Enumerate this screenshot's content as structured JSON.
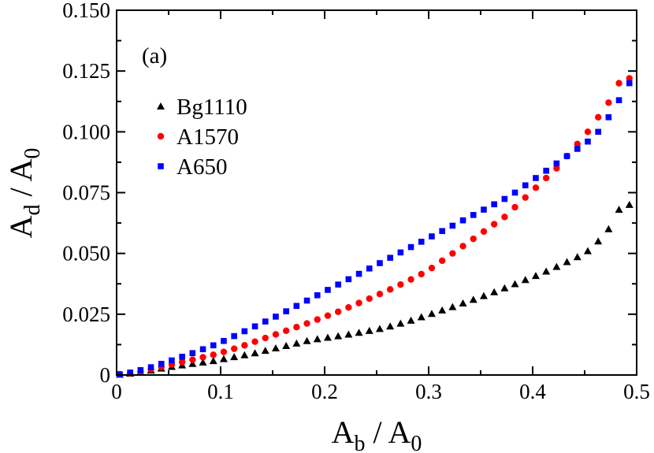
{
  "chart_data": {
    "type": "scatter",
    "panel_label": "(a)",
    "xlabel": {
      "main": "A",
      "sub1": "b",
      "sep": " / A",
      "sub2": "0"
    },
    "ylabel": {
      "main": "A",
      "sub1": "d",
      "sep": " / A",
      "sub2": "0"
    },
    "xlim": [
      0,
      0.5
    ],
    "ylim": [
      0,
      0.15
    ],
    "xticks": [
      0,
      0.1,
      0.2,
      0.3,
      0.4,
      0.5
    ],
    "xtick_labels": [
      "0",
      "0.1",
      "0.2",
      "0.3",
      "0.4",
      "0.5"
    ],
    "yticks": [
      0,
      0.025,
      0.05,
      0.075,
      0.1,
      0.125,
      0.15
    ],
    "ytick_labels": [
      "0",
      "0.025",
      "0.050",
      "0.075",
      "0.100",
      "0.125",
      "0.150"
    ],
    "grid": false,
    "legend_position": "upper-left",
    "series": [
      {
        "name": "Bg1110",
        "marker": "triangle",
        "color": "#000000",
        "x": [
          0.003,
          0.013,
          0.023,
          0.033,
          0.043,
          0.053,
          0.063,
          0.073,
          0.083,
          0.093,
          0.103,
          0.113,
          0.123,
          0.133,
          0.143,
          0.153,
          0.163,
          0.173,
          0.183,
          0.193,
          0.203,
          0.213,
          0.223,
          0.233,
          0.243,
          0.253,
          0.263,
          0.273,
          0.283,
          0.293,
          0.303,
          0.313,
          0.323,
          0.333,
          0.343,
          0.353,
          0.363,
          0.373,
          0.383,
          0.393,
          0.403,
          0.413,
          0.423,
          0.433,
          0.443,
          0.453,
          0.463,
          0.473,
          0.483,
          0.493
        ],
        "y": [
          0.0002,
          0.0006,
          0.0012,
          0.0019,
          0.0027,
          0.0034,
          0.004,
          0.0046,
          0.0052,
          0.0058,
          0.0066,
          0.0074,
          0.0082,
          0.009,
          0.01,
          0.011,
          0.012,
          0.013,
          0.014,
          0.0148,
          0.0154,
          0.016,
          0.0167,
          0.0174,
          0.0182,
          0.019,
          0.02,
          0.0212,
          0.0224,
          0.0238,
          0.0252,
          0.0266,
          0.028,
          0.0295,
          0.031,
          0.0325,
          0.0341,
          0.0357,
          0.0374,
          0.0391,
          0.0408,
          0.0426,
          0.0445,
          0.0465,
          0.0485,
          0.051,
          0.055,
          0.06,
          0.068,
          0.07
        ]
      },
      {
        "name": "A1570",
        "marker": "circle",
        "color": "#ff0000",
        "x": [
          0.003,
          0.013,
          0.023,
          0.033,
          0.043,
          0.053,
          0.063,
          0.073,
          0.083,
          0.093,
          0.103,
          0.113,
          0.123,
          0.133,
          0.143,
          0.153,
          0.163,
          0.173,
          0.183,
          0.193,
          0.203,
          0.213,
          0.223,
          0.233,
          0.243,
          0.253,
          0.263,
          0.273,
          0.283,
          0.293,
          0.303,
          0.313,
          0.323,
          0.333,
          0.343,
          0.353,
          0.363,
          0.373,
          0.383,
          0.393,
          0.403,
          0.413,
          0.423,
          0.433,
          0.443,
          0.453,
          0.463,
          0.473,
          0.483,
          0.493
        ],
        "y": [
          0.0002,
          0.0007,
          0.0014,
          0.0023,
          0.0033,
          0.0043,
          0.0053,
          0.0063,
          0.0073,
          0.0083,
          0.0095,
          0.0108,
          0.0122,
          0.0137,
          0.0152,
          0.0167,
          0.0182,
          0.0197,
          0.0212,
          0.0228,
          0.0244,
          0.026,
          0.0278,
          0.0296,
          0.0314,
          0.0333,
          0.0352,
          0.0372,
          0.0393,
          0.0415,
          0.044,
          0.047,
          0.05,
          0.053,
          0.056,
          0.059,
          0.062,
          0.065,
          0.069,
          0.073,
          0.077,
          0.081,
          0.085,
          0.09,
          0.095,
          0.1,
          0.106,
          0.112,
          0.12,
          0.122
        ]
      },
      {
        "name": "A650",
        "marker": "square",
        "color": "#0000ff",
        "x": [
          0.003,
          0.013,
          0.023,
          0.033,
          0.043,
          0.053,
          0.063,
          0.073,
          0.083,
          0.093,
          0.103,
          0.113,
          0.123,
          0.133,
          0.143,
          0.153,
          0.163,
          0.173,
          0.183,
          0.193,
          0.203,
          0.213,
          0.223,
          0.233,
          0.243,
          0.253,
          0.263,
          0.273,
          0.283,
          0.293,
          0.303,
          0.313,
          0.323,
          0.333,
          0.343,
          0.353,
          0.363,
          0.373,
          0.383,
          0.393,
          0.403,
          0.413,
          0.423,
          0.433,
          0.443,
          0.453,
          0.463,
          0.473,
          0.483,
          0.493
        ],
        "y": [
          0.0003,
          0.001,
          0.002,
          0.0032,
          0.0046,
          0.006,
          0.0075,
          0.009,
          0.0106,
          0.0122,
          0.014,
          0.016,
          0.018,
          0.02,
          0.022,
          0.024,
          0.0262,
          0.0284,
          0.0306,
          0.0328,
          0.035,
          0.0372,
          0.0394,
          0.0416,
          0.0438,
          0.046,
          0.0482,
          0.0504,
          0.0526,
          0.0548,
          0.057,
          0.0592,
          0.0614,
          0.0636,
          0.0658,
          0.068,
          0.0702,
          0.0724,
          0.075,
          0.078,
          0.081,
          0.084,
          0.087,
          0.09,
          0.093,
          0.096,
          0.1,
          0.106,
          0.113,
          0.12
        ]
      }
    ]
  }
}
